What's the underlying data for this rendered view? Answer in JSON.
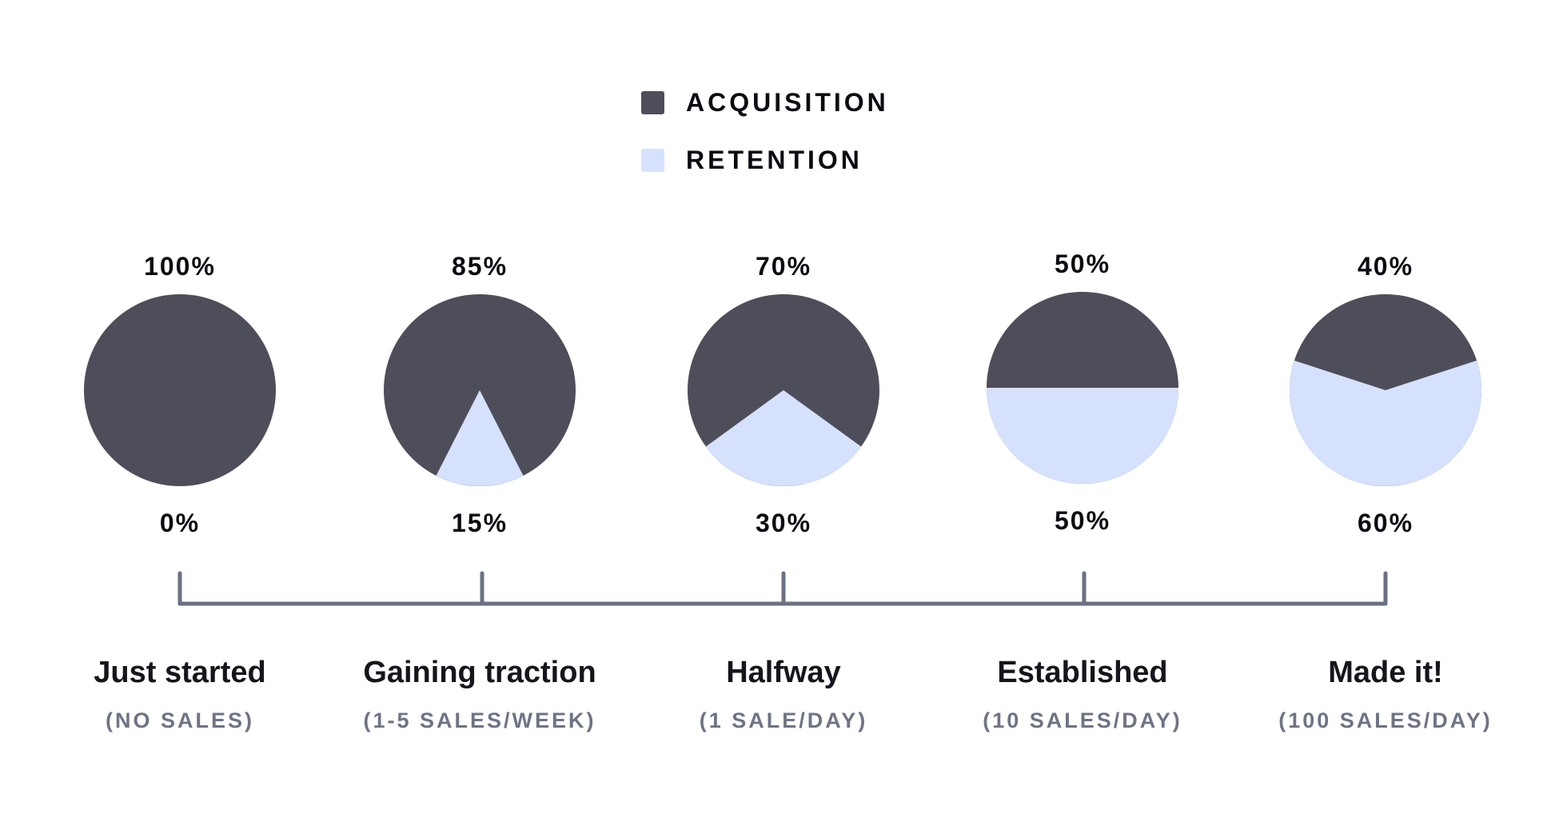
{
  "legend": {
    "items": [
      {
        "label": "ACQUISITION",
        "color": "#4e4e5a"
      },
      {
        "label": "RETENTION",
        "color": "#d6e1fd"
      }
    ]
  },
  "stages": [
    {
      "title": "Just started",
      "subtitle": "(NO SALES)",
      "acquisition_label": "100%",
      "retention_label": "0%"
    },
    {
      "title": "Gaining traction",
      "subtitle": "(1-5 SALES/WEEK)",
      "acquisition_label": "85%",
      "retention_label": "15%"
    },
    {
      "title": "Halfway",
      "subtitle": "(1 SALE/DAY)",
      "acquisition_label": "70%",
      "retention_label": "30%"
    },
    {
      "title": "Established",
      "subtitle": "(10 SALES/DAY)",
      "acquisition_label": "50%",
      "retention_label": "50%"
    },
    {
      "title": "Made it!",
      "subtitle": "(100 SALES/DAY)",
      "acquisition_label": "40%",
      "retention_label": "60%"
    }
  ],
  "colors": {
    "acquisition": "#4e4e5a",
    "retention": "#d6e1fd",
    "timeline": "#6b7083"
  },
  "chart_data": {
    "type": "pie",
    "title": "",
    "categories": [
      "Just started",
      "Gaining traction",
      "Halfway",
      "Established",
      "Made it!"
    ],
    "subtitles": [
      "(NO SALES)",
      "(1-5 SALES/WEEK)",
      "(1 SALE/DAY)",
      "(10 SALES/DAY)",
      "(100 SALES/DAY)"
    ],
    "series": [
      {
        "name": "ACQUISITION",
        "values": [
          100,
          85,
          70,
          50,
          40
        ],
        "color": "#4e4e5a"
      },
      {
        "name": "RETENTION",
        "values": [
          0,
          15,
          30,
          50,
          60
        ],
        "color": "#d6e1fd"
      }
    ],
    "legend_position": "top",
    "unit": "%"
  }
}
